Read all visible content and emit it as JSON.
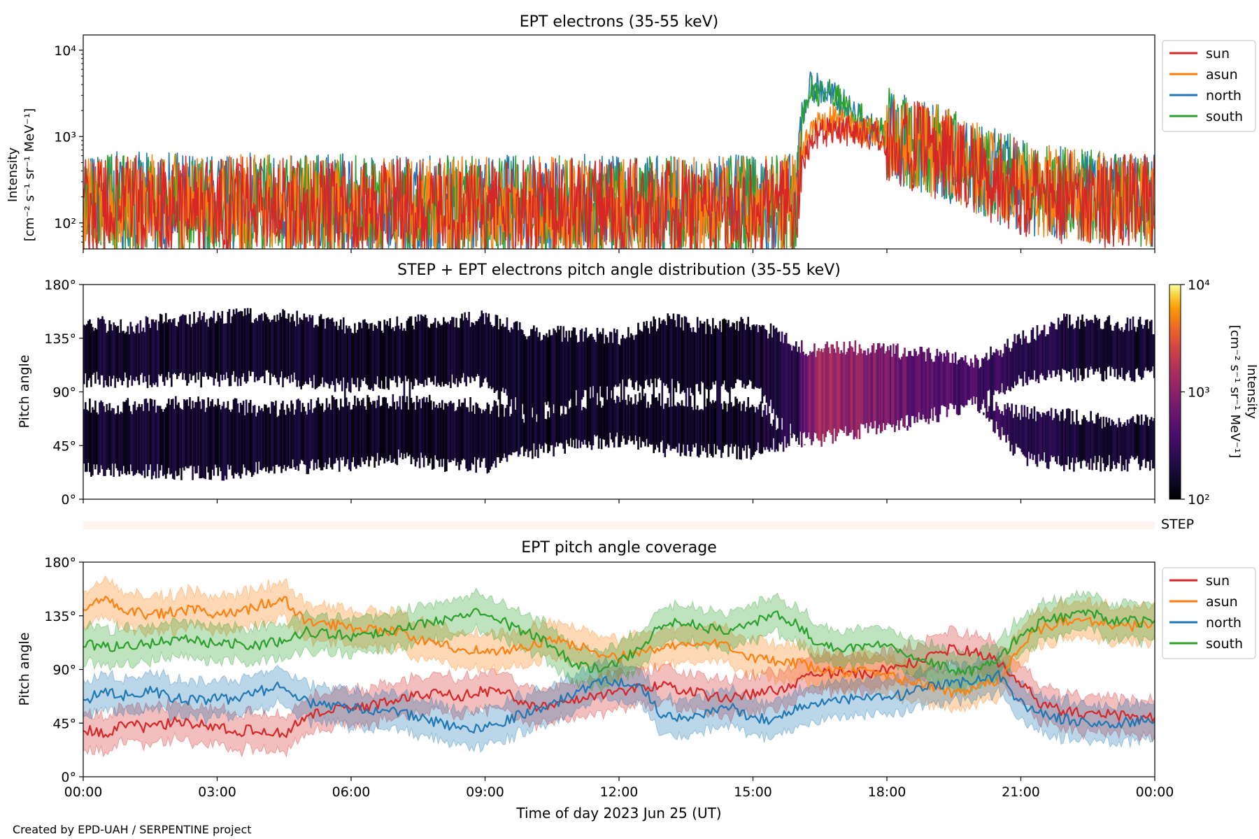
{
  "footer": "Created by EPD-UAH / SERPENTINE project",
  "xlabel": "Time of day 2023 Jun 25 (UT)",
  "x_ticks": [
    "00:00",
    "03:00",
    "06:00",
    "09:00",
    "12:00",
    "15:00",
    "18:00",
    "21:00",
    "00:00"
  ],
  "step_label": "STEP",
  "colors": {
    "sun": "#d62728",
    "asun": "#ff7f0e",
    "north": "#1f77b4",
    "south": "#2ca02c"
  },
  "chart_data": [
    {
      "type": "line",
      "title": "EPT electrons (35-55 keV)",
      "ylabel_line1": "Intensity",
      "ylabel_line2": "[cm⁻² s⁻¹ sr⁻¹ MeV⁻¹]",
      "yscale": "log",
      "ylim": [
        50,
        15000
      ],
      "y_ticks": [
        {
          "value": 100,
          "label": "10²"
        },
        {
          "value": 1000,
          "label": "10³"
        },
        {
          "value": 10000,
          "label": "10⁴"
        }
      ],
      "xlim_hours": [
        0,
        24
      ],
      "legend": [
        "sun",
        "asun",
        "north",
        "south"
      ],
      "legend_position": "right",
      "series": [
        {
          "name": "sun",
          "x": [
            0,
            1,
            2,
            3,
            4,
            5,
            6,
            7,
            8,
            9,
            10,
            11,
            12,
            13,
            14,
            15,
            16.0,
            16.3,
            16.8,
            17.5,
            18,
            19,
            20,
            21,
            22,
            23,
            24
          ],
          "y": [
            170,
            170,
            170,
            165,
            165,
            165,
            165,
            160,
            160,
            160,
            160,
            160,
            160,
            160,
            160,
            160,
            170,
            900,
            1300,
            1100,
            900,
            650,
            400,
            250,
            200,
            180,
            170
          ]
        },
        {
          "name": "asun",
          "x": [
            0,
            1,
            2,
            3,
            4,
            5,
            6,
            7,
            8,
            9,
            10,
            11,
            12,
            13,
            14,
            15,
            16.0,
            16.3,
            16.8,
            17.5,
            18,
            19,
            20,
            21,
            22,
            23,
            24
          ],
          "y": [
            180,
            180,
            175,
            175,
            175,
            170,
            170,
            170,
            170,
            165,
            165,
            165,
            165,
            165,
            165,
            165,
            180,
            1100,
            1500,
            1200,
            950,
            700,
            420,
            260,
            210,
            190,
            180
          ]
        },
        {
          "name": "north",
          "x": [
            0,
            1,
            2,
            3,
            4,
            5,
            6,
            7,
            8,
            9,
            10,
            11,
            12,
            13,
            14,
            15,
            16.0,
            16.3,
            16.8,
            17.5,
            18,
            19,
            20,
            21,
            22,
            23,
            24
          ],
          "y": [
            190,
            190,
            185,
            185,
            185,
            180,
            180,
            180,
            175,
            175,
            175,
            175,
            175,
            175,
            175,
            175,
            190,
            4000,
            2800,
            1300,
            1000,
            700,
            420,
            260,
            210,
            190,
            180
          ]
        },
        {
          "name": "south",
          "x": [
            0,
            1,
            2,
            3,
            4,
            5,
            6,
            7,
            8,
            9,
            10,
            11,
            12,
            13,
            14,
            15,
            16.0,
            16.3,
            16.8,
            17.5,
            18,
            19,
            20,
            21,
            22,
            23,
            24
          ],
          "y": [
            185,
            185,
            180,
            180,
            180,
            175,
            175,
            175,
            170,
            170,
            170,
            170,
            170,
            170,
            170,
            170,
            185,
            3500,
            3000,
            1400,
            1050,
            720,
            430,
            270,
            215,
            195,
            185
          ]
        }
      ]
    },
    {
      "type": "heatmap",
      "title": "STEP + EPT electrons pitch angle distribution (35-55 keV)",
      "ylabel": "Pitch angle",
      "ylim": [
        0,
        180
      ],
      "y_ticks": [
        "0°",
        "45°",
        "90°",
        "135°",
        "180°"
      ],
      "y_tick_values": [
        0,
        45,
        90,
        135,
        180
      ],
      "colorbar": {
        "label_line1": "Intensity",
        "label_line2": "[cm⁻² s⁻¹ sr⁻¹ MeV⁻¹]",
        "scale": "log",
        "range": [
          100,
          10000
        ],
        "ticks": [
          "10²",
          "10³",
          "10⁴"
        ],
        "tick_values": [
          100,
          1000,
          10000
        ]
      },
      "time_hours": [
        0,
        1,
        2,
        3,
        4,
        5,
        6,
        7,
        8,
        9,
        10,
        11,
        12,
        13,
        14,
        15,
        16,
        16.5,
        17,
        18,
        19,
        20,
        21,
        22,
        23,
        24
      ],
      "upper_top_deg": [
        148,
        145,
        150,
        152,
        155,
        150,
        145,
        147,
        150,
        152,
        140,
        138,
        136,
        150,
        145,
        148,
        128,
        125,
        128,
        125,
        120,
        115,
        135,
        150,
        148,
        145
      ],
      "upper_bottom_deg": [
        100,
        100,
        100,
        100,
        102,
        98,
        95,
        98,
        100,
        98,
        70,
        85,
        95,
        95,
        92,
        95,
        50,
        50,
        55,
        60,
        70,
        80,
        100,
        105,
        105,
        105
      ],
      "lower_top_deg": [
        78,
        78,
        80,
        80,
        75,
        78,
        82,
        82,
        80,
        78,
        70,
        80,
        85,
        82,
        80,
        80,
        50,
        50,
        55,
        60,
        70,
        80,
        72,
        70,
        65,
        65
      ],
      "lower_bottom_deg": [
        25,
        25,
        22,
        22,
        25,
        28,
        30,
        35,
        30,
        28,
        40,
        45,
        50,
        42,
        40,
        40,
        50,
        50,
        55,
        60,
        70,
        80,
        35,
        30,
        30,
        30
      ],
      "intensity": [
        160,
        160,
        160,
        155,
        155,
        155,
        155,
        150,
        150,
        150,
        150,
        150,
        150,
        150,
        150,
        150,
        250,
        1400,
        1100,
        700,
        500,
        350,
        230,
        190,
        170,
        165
      ]
    },
    {
      "type": "line",
      "title": "EPT pitch angle coverage",
      "ylabel": "Pitch angle",
      "ylim": [
        0,
        180
      ],
      "y_ticks": [
        "0°",
        "45°",
        "90°",
        "135°",
        "180°"
      ],
      "y_tick_values": [
        0,
        45,
        90,
        135,
        180
      ],
      "legend": [
        "sun",
        "asun",
        "north",
        "south"
      ],
      "legend_position": "right",
      "band_halfwidth_deg": 15,
      "series": [
        {
          "name": "sun",
          "x": [
            0,
            0.5,
            1,
            1.5,
            2,
            2.5,
            3,
            3.5,
            4,
            4.5,
            5,
            5.5,
            6,
            6.5,
            7,
            7.5,
            8,
            8.5,
            9,
            9.5,
            10,
            10.5,
            11,
            11.5,
            12,
            12.5,
            13,
            13.5,
            14,
            14.5,
            15,
            15.5,
            16,
            16.5,
            17,
            17.5,
            18,
            18.5,
            19,
            19.5,
            20,
            20.5,
            21,
            21.5,
            22,
            22.5,
            23,
            23.5,
            24
          ],
          "y": [
            40,
            35,
            45,
            40,
            46,
            44,
            42,
            38,
            40,
            35,
            52,
            55,
            58,
            60,
            65,
            68,
            70,
            68,
            72,
            70,
            60,
            58,
            65,
            68,
            72,
            74,
            78,
            72,
            68,
            66,
            70,
            72,
            80,
            86,
            88,
            86,
            90,
            95,
            100,
            108,
            104,
            96,
            78,
            60,
            55,
            52,
            52,
            50,
            50
          ]
        },
        {
          "name": "asun",
          "x": [
            0,
            0.5,
            1,
            1.5,
            2,
            2.5,
            3,
            3.5,
            4,
            4.5,
            5,
            5.5,
            6,
            6.5,
            7,
            7.5,
            8,
            8.5,
            9,
            9.5,
            10,
            10.5,
            11,
            11.5,
            12,
            12.5,
            13,
            13.5,
            14,
            14.5,
            15,
            15.5,
            16,
            16.5,
            17,
            17.5,
            18,
            18.5,
            19,
            19.5,
            20,
            20.5,
            21,
            21.5,
            22,
            22.5,
            23,
            23.5,
            24
          ],
          "y": [
            140,
            150,
            140,
            135,
            138,
            140,
            135,
            138,
            145,
            148,
            130,
            128,
            126,
            124,
            122,
            115,
            110,
            108,
            105,
            106,
            110,
            115,
            110,
            105,
            100,
            105,
            108,
            110,
            112,
            110,
            100,
            96,
            95,
            90,
            88,
            88,
            85,
            80,
            75,
            70,
            75,
            82,
            110,
            125,
            130,
            132,
            128,
            126,
            130
          ]
        },
        {
          "name": "north",
          "x": [
            0,
            0.5,
            1,
            1.5,
            2,
            2.5,
            3,
            3.5,
            4,
            4.5,
            5,
            5.5,
            6,
            6.5,
            7,
            7.5,
            8,
            8.5,
            9,
            9.5,
            10,
            10.5,
            11,
            11.5,
            12,
            12.5,
            13,
            13.5,
            14,
            14.5,
            15,
            15.5,
            16,
            16.5,
            17,
            17.5,
            18,
            18.5,
            19,
            19.5,
            20,
            20.5,
            21,
            21.5,
            22,
            22.5,
            23,
            23.5,
            24
          ],
          "y": [
            65,
            70,
            68,
            72,
            66,
            64,
            65,
            66,
            72,
            78,
            62,
            60,
            58,
            56,
            54,
            50,
            45,
            40,
            42,
            48,
            55,
            60,
            70,
            80,
            80,
            75,
            50,
            48,
            55,
            58,
            50,
            48,
            58,
            62,
            64,
            66,
            66,
            70,
            75,
            78,
            82,
            85,
            62,
            52,
            48,
            45,
            44,
            46,
            48
          ]
        },
        {
          "name": "south",
          "x": [
            0,
            0.5,
            1,
            1.5,
            2,
            2.5,
            3,
            3.5,
            4,
            4.5,
            5,
            5.5,
            6,
            6.5,
            7,
            7.5,
            8,
            8.5,
            9,
            9.5,
            10,
            10.5,
            11,
            11.5,
            12,
            12.5,
            13,
            13.5,
            14,
            14.5,
            15,
            15.5,
            16,
            16.5,
            17,
            17.5,
            18,
            18.5,
            19,
            19.5,
            20,
            20.5,
            21,
            21.5,
            22,
            22.5,
            23,
            23.5,
            24
          ],
          "y": [
            112,
            108,
            110,
            112,
            115,
            114,
            112,
            112,
            110,
            115,
            122,
            120,
            118,
            120,
            124,
            128,
            130,
            138,
            140,
            128,
            120,
            110,
            95,
            90,
            95,
            110,
            130,
            128,
            125,
            122,
            130,
            135,
            128,
            110,
            108,
            110,
            112,
            104,
            95,
            90,
            88,
            100,
            118,
            130,
            135,
            138,
            132,
            130,
            130
          ]
        }
      ]
    }
  ]
}
